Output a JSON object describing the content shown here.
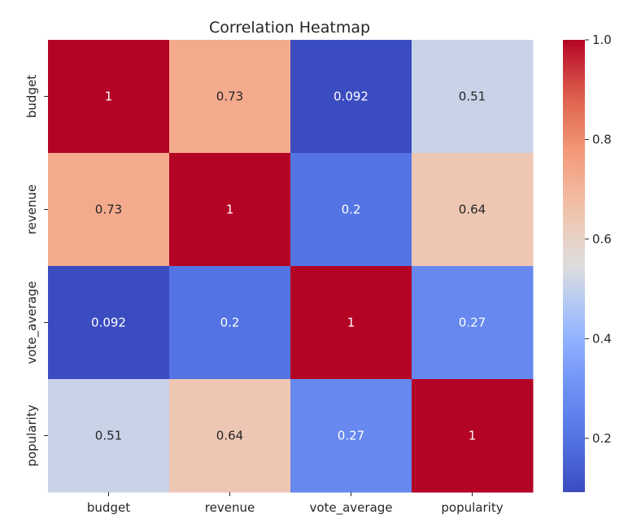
{
  "chart_data": {
    "type": "heatmap",
    "title": "Correlation Heatmap",
    "xlabel": "",
    "ylabel": "",
    "x_categories": [
      "budget",
      "revenue",
      "vote_average",
      "popularity"
    ],
    "y_categories": [
      "budget",
      "revenue",
      "vote_average",
      "popularity"
    ],
    "values": [
      [
        1,
        0.73,
        0.092,
        0.51
      ],
      [
        0.73,
        1,
        0.2,
        0.64
      ],
      [
        0.092,
        0.2,
        1,
        0.27
      ],
      [
        0.51,
        0.64,
        0.27,
        1
      ]
    ],
    "annotations": [
      [
        "1",
        "0.73",
        "0.092",
        "0.51"
      ],
      [
        "0.73",
        "1",
        "0.2",
        "0.64"
      ],
      [
        "0.092",
        "0.2",
        "1",
        "0.27"
      ],
      [
        "0.51",
        "0.64",
        "0.27",
        "1"
      ]
    ],
    "colormap": "coolwarm",
    "colorbar": {
      "vmin": 0.092,
      "vmax": 1.0,
      "ticks": [
        0.2,
        0.4,
        0.6,
        0.8,
        1.0
      ],
      "tick_labels": [
        "0.2",
        "0.4",
        "0.6",
        "0.8",
        "1.0"
      ],
      "placement": "right"
    },
    "grid": false
  }
}
